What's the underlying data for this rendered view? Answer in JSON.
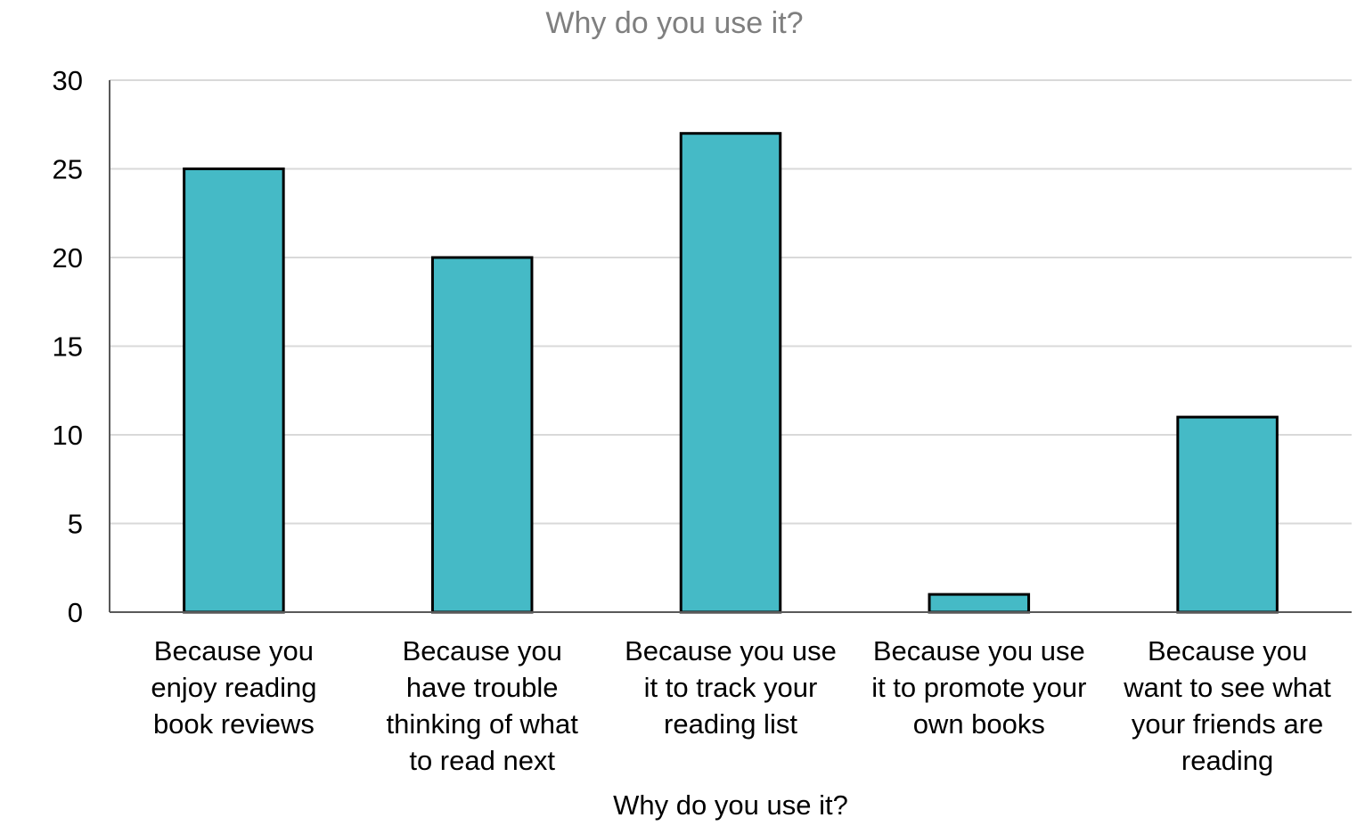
{
  "chart_data": {
    "type": "bar",
    "title": "Why do you use it?",
    "xlabel": "Why do you use it?",
    "ylabel": "",
    "ylim": [
      0,
      30
    ],
    "yticks": [
      "0",
      "5",
      "10",
      "15",
      "20",
      "25",
      "30"
    ],
    "grid": true,
    "legend": "none",
    "bar_color": "#45BAC6",
    "categories": [
      [
        "Because you",
        "enjoy reading",
        "book reviews"
      ],
      [
        "Because you",
        "have trouble",
        "thinking of what",
        "to read next"
      ],
      [
        "Because you use",
        "it to track your",
        "reading list"
      ],
      [
        "Because you use",
        "it to promote your",
        "own books"
      ],
      [
        "Because you",
        "want to see what",
        "your friends are",
        "reading"
      ]
    ],
    "values": [
      25,
      20,
      27,
      1,
      11
    ]
  }
}
